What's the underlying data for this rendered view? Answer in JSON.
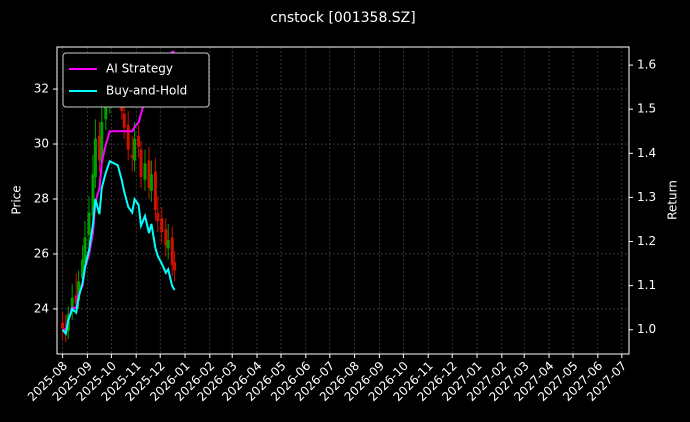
{
  "chart_data": {
    "type": "candlestick",
    "title": "cnstock [001358.SZ]",
    "y_label": "Price",
    "y2_label": "Return",
    "x": [
      "2025-08-01",
      "2025-08-05",
      "2025-08-08",
      "2025-08-13",
      "2025-08-18",
      "2025-08-21",
      "2025-08-26",
      "2025-08-29",
      "2025-09-03",
      "2025-09-08",
      "2025-09-11",
      "2025-09-16",
      "2025-09-19",
      "2025-09-24",
      "2025-09-29",
      "2025-10-09",
      "2025-10-14",
      "2025-10-17",
      "2025-10-22",
      "2025-10-27",
      "2025-10-30",
      "2025-11-04",
      "2025-11-07",
      "2025-11-12",
      "2025-11-17",
      "2025-11-20",
      "2025-11-25",
      "2025-11-28",
      "2025-12-03",
      "2025-12-08",
      "2025-12-11",
      "2025-12-16",
      "2025-12-19"
    ],
    "open": [
      23.5,
      23.3,
      23.2,
      23.9,
      24.5,
      24.3,
      25.1,
      25.7,
      26.7,
      27.4,
      28.8,
      30.3,
      29.3,
      30.9,
      31.5,
      32.4,
      32.1,
      31.1,
      30.7,
      29.6,
      29.4,
      30.3,
      29.8,
      28.7,
      29.4,
      28.3,
      29.0,
      27.5,
      27.3,
      26.9,
      26.2,
      26.6,
      25.7
    ],
    "high": [
      23.9,
      23.8,
      24.1,
      24.9,
      25.3,
      25.4,
      26.3,
      27.2,
      28.1,
      29.6,
      30.9,
      30.8,
      31.4,
      32.2,
      32.8,
      32.9,
      32.5,
      31.6,
      31.2,
      30.3,
      30.8,
      30.7,
      30.1,
      29.8,
      29.9,
      29.4,
      29.5,
      28.1,
      27.7,
      27.3,
      27.1,
      27.0,
      26.1
    ],
    "low": [
      22.9,
      22.8,
      22.9,
      23.6,
      23.8,
      24.0,
      24.8,
      25.3,
      26.3,
      27.0,
      28.4,
      29.0,
      28.9,
      30.5,
      31.1,
      31.5,
      30.9,
      30.2,
      29.4,
      29.0,
      29.0,
      29.5,
      28.4,
      28.3,
      28.0,
      27.9,
      27.2,
      26.8,
      26.4,
      25.9,
      25.8,
      25.2,
      25.0
    ],
    "close": [
      23.3,
      23.1,
      23.8,
      24.4,
      24.2,
      25.0,
      25.8,
      26.6,
      27.5,
      28.9,
      30.2,
      29.4,
      30.8,
      31.6,
      32.2,
      32.0,
      31.2,
      30.6,
      29.8,
      29.5,
      30.2,
      29.9,
      28.8,
      29.3,
      28.4,
      28.9,
      27.6,
      27.2,
      26.8,
      26.3,
      26.5,
      25.6,
      25.4
    ],
    "up_color": "#00a000",
    "down_color": "#d01000",
    "series": [
      {
        "name": "AI Strategy",
        "color": "#ff00ff",
        "axis": "y2",
        "values": [
          1.0,
          1.0,
          1.02,
          1.05,
          1.05,
          1.08,
          1.1,
          1.14,
          1.17,
          1.22,
          1.29,
          1.32,
          1.38,
          1.42,
          1.45,
          1.45,
          1.45,
          1.45,
          1.45,
          1.45,
          1.46,
          1.47,
          1.49,
          1.52,
          1.54,
          1.55,
          1.57,
          1.58,
          1.6,
          1.62,
          1.62,
          1.63,
          1.63
        ]
      },
      {
        "name": "Buy-and-Hold",
        "color": "#00ffff",
        "axis": "y2",
        "values": [
          1.0,
          0.991,
          1.021,
          1.047,
          1.039,
          1.073,
          1.107,
          1.142,
          1.18,
          1.24,
          1.296,
          1.262,
          1.322,
          1.356,
          1.382,
          1.373,
          1.339,
          1.313,
          1.279,
          1.266,
          1.296,
          1.283,
          1.236,
          1.258,
          1.219,
          1.24,
          1.185,
          1.167,
          1.15,
          1.129,
          1.137,
          1.099,
          1.09
        ]
      }
    ],
    "xlim": [
      "2025-07-25",
      "2027-07-10"
    ],
    "xticks": [
      {
        "value": "2025-08-01",
        "label": "2025-08"
      },
      {
        "value": "2025-09-01",
        "label": "2025-09"
      },
      {
        "value": "2025-10-01",
        "label": "2025-10"
      },
      {
        "value": "2025-11-01",
        "label": "2025-11"
      },
      {
        "value": "2025-12-01",
        "label": "2025-12"
      },
      {
        "value": "2026-01-01",
        "label": "2026-01"
      },
      {
        "value": "2026-02-01",
        "label": "2026-02"
      },
      {
        "value": "2026-03-01",
        "label": "2026-03"
      },
      {
        "value": "2026-04-01",
        "label": "2026-04"
      },
      {
        "value": "2026-05-01",
        "label": "2026-05"
      },
      {
        "value": "2026-06-01",
        "label": "2026-06"
      },
      {
        "value": "2026-07-01",
        "label": "2026-07"
      },
      {
        "value": "2026-08-01",
        "label": "2026-08"
      },
      {
        "value": "2026-09-01",
        "label": "2026-09"
      },
      {
        "value": "2026-10-01",
        "label": "2026-10"
      },
      {
        "value": "2026-11-01",
        "label": "2026-11"
      },
      {
        "value": "2026-12-01",
        "label": "2026-12"
      },
      {
        "value": "2027-01-01",
        "label": "2027-01"
      },
      {
        "value": "2027-02-01",
        "label": "2027-02"
      },
      {
        "value": "2027-03-01",
        "label": "2027-03"
      },
      {
        "value": "2027-04-01",
        "label": "2027-04"
      },
      {
        "value": "2027-05-01",
        "label": "2027-05"
      },
      {
        "value": "2027-06-01",
        "label": "2027-06"
      },
      {
        "value": "2027-07-01",
        "label": "2027-07"
      }
    ],
    "ylim": [
      22.36,
      33.53
    ],
    "yticks": [
      24,
      26,
      28,
      30,
      32
    ],
    "y2lim": [
      0.945,
      1.641
    ],
    "y2ticks": [
      {
        "value": 1.0,
        "label": "1.0"
      },
      1.1,
      1.2,
      1.3,
      1.4,
      1.5,
      1.6
    ],
    "grid": true,
    "legend": "upper left"
  }
}
